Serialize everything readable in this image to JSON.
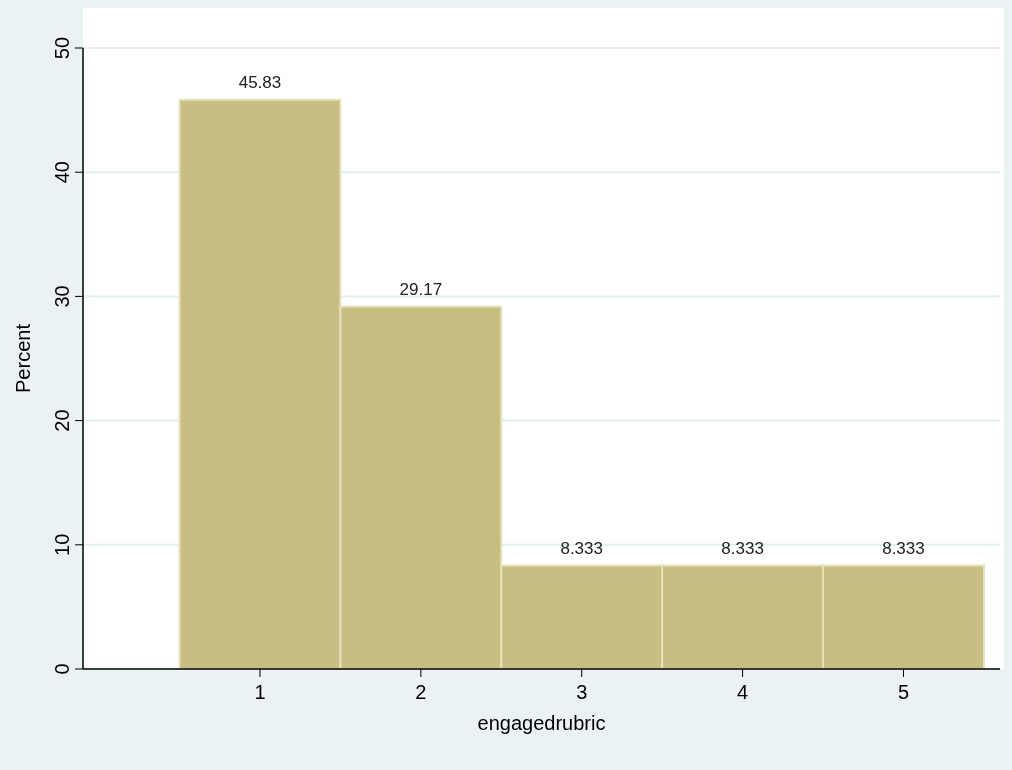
{
  "chart_data": {
    "type": "histogram",
    "xlabel": "engagedrubric",
    "ylabel": "Percent",
    "bins": [
      0.5,
      1.5,
      2.5,
      3.5,
      4.5,
      5.5
    ],
    "values": [
      45.83,
      29.17,
      8.333,
      8.333,
      8.333
    ],
    "color": "#c8be82",
    "xlim": [
      -0.1,
      5.6
    ],
    "xticks": [
      1,
      2,
      3,
      4,
      5
    ],
    "ylim": [
      0,
      50
    ],
    "yticks": [
      0,
      10,
      20,
      30,
      40,
      50
    ],
    "grid": "y",
    "data_labels": true
  }
}
